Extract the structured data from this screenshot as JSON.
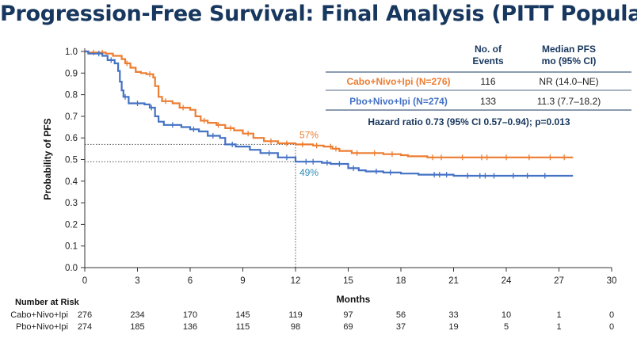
{
  "slide": {
    "title": "Progression-Free Survival: Final Analysis (PITT Population"
  },
  "colors": {
    "title": "#17375e",
    "cabo": "#ed7d31",
    "pbo": "#4472c4",
    "callout_pbo": "#2e8cb8"
  },
  "chart_data": {
    "type": "line",
    "subtype": "kaplan-meier",
    "xlabel": "Months",
    "ylabel": "Probability of PFS",
    "xlim": [
      0,
      30
    ],
    "ylim": [
      0,
      1.0
    ],
    "xticks": [
      0,
      3,
      6,
      9,
      12,
      15,
      18,
      21,
      24,
      27,
      30
    ],
    "yticks": [
      "0.0",
      "0.1",
      "0.2",
      "0.3",
      "0.4",
      "0.5",
      "0.6",
      "0.7",
      "0.8",
      "0.9",
      "1.0"
    ],
    "series": [
      {
        "name": "Cabo+Nivo+Ipi (N=276)",
        "color": "#ed7d31",
        "x": [
          0,
          0.2,
          1.2,
          1.6,
          2.1,
          2.3,
          2.6,
          2.9,
          3.2,
          3.5,
          3.9,
          4.0,
          4.2,
          4.4,
          5.0,
          5.4,
          6.0,
          6.3,
          6.6,
          7.0,
          7.5,
          8.0,
          8.5,
          9.0,
          9.6,
          10.2,
          11.0,
          12.0,
          13.0,
          13.6,
          14.1,
          14.5,
          15.2,
          16.0,
          17.0,
          18.0,
          18.4,
          19.5,
          22.0,
          25.0,
          27.8
        ],
        "y": [
          1.0,
          0.995,
          0.99,
          0.98,
          0.965,
          0.945,
          0.925,
          0.905,
          0.9,
          0.895,
          0.88,
          0.84,
          0.79,
          0.77,
          0.76,
          0.74,
          0.73,
          0.7,
          0.68,
          0.67,
          0.66,
          0.645,
          0.635,
          0.62,
          0.6,
          0.585,
          0.575,
          0.57,
          0.565,
          0.56,
          0.55,
          0.54,
          0.53,
          0.53,
          0.525,
          0.52,
          0.515,
          0.51,
          0.51,
          0.51,
          0.51
        ],
        "censor_x": [
          0.5,
          1.0,
          2.4,
          3.7,
          4.6,
          5.6,
          6.8,
          7.6,
          8.3,
          9.3,
          10.6,
          11.5,
          12.4,
          13.2,
          14.0,
          14.3,
          15.5,
          16.5,
          17.5,
          19.8,
          20.3,
          21.5,
          22.6,
          22.9,
          24.0,
          25.3,
          26.5,
          27.3
        ]
      },
      {
        "name": "Pbo+Nivo+Ipi (N=274)",
        "color": "#4472c4",
        "x": [
          0,
          0.2,
          1.0,
          1.3,
          1.7,
          1.9,
          2.0,
          2.1,
          2.2,
          2.5,
          3.4,
          3.7,
          4.0,
          4.2,
          4.5,
          5.5,
          6.0,
          6.5,
          7.0,
          7.7,
          8.0,
          8.6,
          9.4,
          10.0,
          11.0,
          12.0,
          13.5,
          14.0,
          15.0,
          15.6,
          16.0,
          17.0,
          18.0,
          19.0,
          21.0,
          27.8
        ],
        "y": [
          1.0,
          0.99,
          0.98,
          0.96,
          0.945,
          0.91,
          0.86,
          0.82,
          0.79,
          0.76,
          0.755,
          0.74,
          0.7,
          0.675,
          0.66,
          0.65,
          0.64,
          0.63,
          0.61,
          0.6,
          0.57,
          0.56,
          0.545,
          0.53,
          0.51,
          0.49,
          0.485,
          0.48,
          0.46,
          0.45,
          0.445,
          0.44,
          0.435,
          0.43,
          0.425,
          0.425
        ],
        "censor_x": [
          0.8,
          1.5,
          2.3,
          3.0,
          3.8,
          5.0,
          6.2,
          7.3,
          8.4,
          10.5,
          11.5,
          12.6,
          13.0,
          13.8,
          14.5,
          15.3,
          16.6,
          17.4,
          19.9,
          20.2,
          20.6,
          21.8,
          22.5,
          22.8,
          23.3,
          24.4,
          25.2,
          26.2
        ]
      }
    ],
    "reference_lines": {
      "x": 12,
      "y": [
        0.57,
        0.49
      ]
    },
    "annotations": [
      {
        "label": "57%",
        "x": 12,
        "y": 0.57,
        "series": "Cabo+Nivo+Ipi (N=276)"
      },
      {
        "label": "49%",
        "x": 12,
        "y": 0.49,
        "series": "Pbo+Nivo+Ipi (N=274)"
      }
    ],
    "summary_table": {
      "col_headers": [
        [
          "No. of",
          "Events"
        ],
        [
          "Median PFS",
          "mo (95% CI)"
        ]
      ],
      "rows": [
        {
          "arm": "Cabo+Nivo+Ipi (N=276)",
          "events": "116",
          "median": "NR (14.0–NE)"
        },
        {
          "arm": "Pbo+Nivo+Ipi (N=274)",
          "events": "133",
          "median": "11.3 (7.7–18.2)"
        }
      ],
      "hazard_ratio": "Hazard ratio 0.73 (95% CI 0.57–0.94); p=0.013"
    },
    "number_at_risk": {
      "title": "Number at Risk",
      "rows": [
        {
          "label": "Cabo+Nivo+Ipi",
          "values": [
            "276",
            "234",
            "170",
            "145",
            "119",
            "97",
            "56",
            "33",
            "10",
            "1",
            "0"
          ]
        },
        {
          "label": "Pbo+Nivo+Ipi",
          "values": [
            "274",
            "185",
            "136",
            "115",
            "98",
            "69",
            "37",
            "19",
            "5",
            "1",
            "0"
          ]
        }
      ]
    }
  }
}
